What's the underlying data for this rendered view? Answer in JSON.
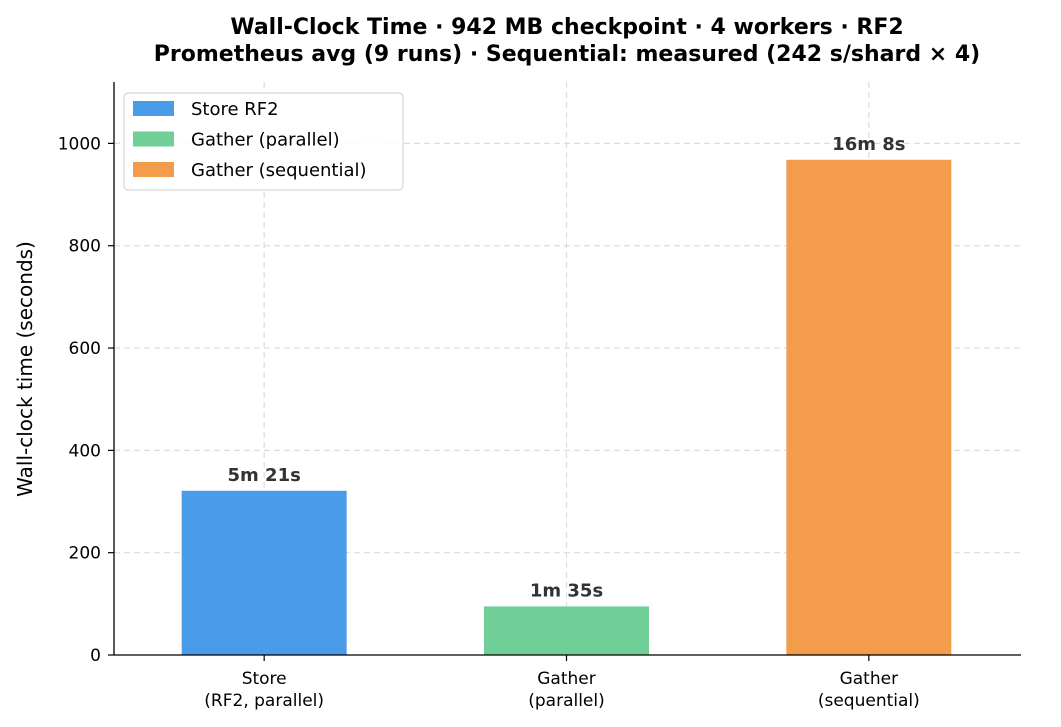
{
  "chart_data": {
    "type": "bar",
    "title_lines": [
      "Wall-Clock Time  ·  942 MB checkpoint  ·  4 workers  ·  RF2",
      "Prometheus avg (9 runs)  ·  Sequential: measured (242 s/shard × 4)"
    ],
    "xlabel": "",
    "ylabel": "Wall-clock time (seconds)",
    "ylim": [
      0,
      1120
    ],
    "yticks": [
      0,
      200,
      400,
      600,
      800,
      1000
    ],
    "grid": true,
    "legend_position": "top-left",
    "categories": [
      [
        "Store",
        "(RF2, parallel)"
      ],
      [
        "Gather",
        "(parallel)"
      ],
      [
        "Gather",
        "(sequential)"
      ]
    ],
    "series": [
      {
        "name": "Store RF2",
        "color": "#4a9be8",
        "value": 321,
        "label": "5m 21s"
      },
      {
        "name": "Gather (parallel)",
        "color": "#6fcf97",
        "value": 95,
        "label": "1m 35s"
      },
      {
        "name": "Gather (sequential)",
        "color": "#f39c4b",
        "value": 968,
        "label": "16m 8s"
      }
    ]
  }
}
